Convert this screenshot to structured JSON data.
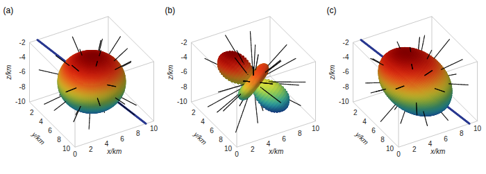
{
  "chart_data": [
    {
      "type": "ellipsoid3d",
      "title": "(a)",
      "xlabel": "x/km",
      "ylabel": "y/km",
      "zlabel": "z/km",
      "xlim": [
        0,
        10
      ],
      "ylim": [
        0,
        10
      ],
      "zlim": [
        -10,
        -2
      ],
      "xticks": [
        0,
        2,
        4,
        6,
        8,
        10
      ],
      "yticks": [
        2,
        4,
        6,
        8,
        10
      ],
      "zticks": [
        -2,
        -4,
        -6,
        -8,
        -10
      ],
      "center": [
        5,
        5,
        -6
      ],
      "axis": [
        0,
        0,
        1
      ],
      "radii": [
        3.2,
        3.6,
        3.6
      ],
      "line": [
        [
          1,
          0,
          -2
        ],
        [
          9,
          10,
          -10
        ]
      ],
      "stick_length": 6,
      "sticks": [
        [
          0,
          10
        ],
        [
          25,
          -35
        ],
        [
          50,
          40
        ],
        [
          75,
          -5
        ],
        [
          100,
          65
        ],
        [
          125,
          -50
        ],
        [
          150,
          20
        ],
        [
          175,
          -20
        ],
        [
          200,
          45
        ],
        [
          225,
          5
        ],
        [
          250,
          -40
        ],
        [
          275,
          30
        ],
        [
          300,
          -10
        ],
        [
          325,
          55
        ],
        [
          350,
          -60
        ],
        [
          12,
          75
        ],
        [
          40,
          -70
        ],
        [
          88,
          25
        ],
        [
          140,
          -15
        ],
        [
          190,
          -65
        ],
        [
          235,
          70
        ],
        [
          285,
          -25
        ],
        [
          310,
          15
        ],
        [
          160,
          50
        ],
        [
          60,
          -25
        ],
        [
          210,
          -30
        ],
        [
          340,
          35
        ],
        [
          110,
          5
        ],
        [
          265,
          -70
        ],
        [
          20,
          45
        ]
      ]
    },
    {
      "type": "lobes3d",
      "title": "(b)",
      "xlabel": "x/km",
      "ylabel": "y/km",
      "zlabel": "z/km",
      "xlim": [
        0,
        10
      ],
      "ylim": [
        0,
        10
      ],
      "zlim": [
        -10,
        -2
      ],
      "xticks": [
        0,
        2,
        4,
        6,
        8,
        10
      ],
      "yticks": [
        2,
        4,
        6,
        8,
        10
      ],
      "zticks": [
        -2,
        -4,
        -6,
        -8,
        -10
      ],
      "center": [
        5,
        5,
        -6
      ],
      "axis": [
        8,
        10,
        -8
      ],
      "radii": [
        4.5
      ],
      "stick_length": 6,
      "sticks": [
        [
          8,
          20
        ],
        [
          33,
          -30
        ],
        [
          58,
          50
        ],
        [
          83,
          0
        ],
        [
          108,
          -60
        ],
        [
          133,
          35
        ],
        [
          158,
          -10
        ],
        [
          183,
          60
        ],
        [
          208,
          -45
        ],
        [
          233,
          15
        ],
        [
          258,
          40
        ],
        [
          283,
          -20
        ],
        [
          308,
          70
        ],
        [
          333,
          -5
        ],
        [
          358,
          -50
        ],
        [
          20,
          -75
        ],
        [
          70,
          80
        ],
        [
          95,
          30
        ],
        [
          145,
          -40
        ],
        [
          170,
          10
        ],
        [
          195,
          -25
        ],
        [
          245,
          -65
        ],
        [
          270,
          5
        ],
        [
          295,
          45
        ],
        [
          320,
          -35
        ],
        [
          345,
          25
        ],
        [
          45,
          10
        ],
        [
          120,
          55
        ],
        [
          220,
          65
        ],
        [
          15,
          -15
        ]
      ]
    },
    {
      "type": "ellipsoid3d",
      "title": "(c)",
      "xlabel": "x/km",
      "ylabel": "y/km",
      "zlabel": "z/km",
      "xlim": [
        0,
        10
      ],
      "ylim": [
        0,
        10
      ],
      "zlim": [
        -10,
        -2
      ],
      "xticks": [
        0,
        2,
        4,
        6,
        8,
        10
      ],
      "yticks": [
        2,
        4,
        6,
        8,
        10
      ],
      "zticks": [
        -2,
        -4,
        -6,
        -8,
        -10
      ],
      "center": [
        5,
        5,
        -6
      ],
      "axis": [
        8,
        10,
        -8
      ],
      "radii": [
        4.3,
        3.4,
        3.0
      ],
      "line": [
        [
          1,
          0,
          -2
        ],
        [
          9,
          10,
          -10
        ]
      ],
      "stick_length": 6,
      "sticks": [
        [
          5,
          -5
        ],
        [
          30,
          30
        ],
        [
          55,
          -45
        ],
        [
          80,
          15
        ],
        [
          105,
          -25
        ],
        [
          130,
          60
        ],
        [
          155,
          -55
        ],
        [
          180,
          5
        ],
        [
          205,
          35
        ],
        [
          230,
          -15
        ],
        [
          255,
          55
        ],
        [
          280,
          -40
        ],
        [
          305,
          20
        ],
        [
          330,
          -70
        ],
        [
          355,
          40
        ],
        [
          18,
          65
        ],
        [
          68,
          -70
        ],
        [
          92,
          45
        ],
        [
          118,
          -5
        ],
        [
          143,
          25
        ],
        [
          168,
          -30
        ],
        [
          218,
          -60
        ],
        [
          243,
          10
        ],
        [
          268,
          75
        ],
        [
          293,
          -10
        ],
        [
          318,
          50
        ],
        [
          343,
          -25
        ],
        [
          43,
          5
        ],
        [
          193,
          -5
        ],
        [
          268,
          -35
        ]
      ]
    }
  ]
}
